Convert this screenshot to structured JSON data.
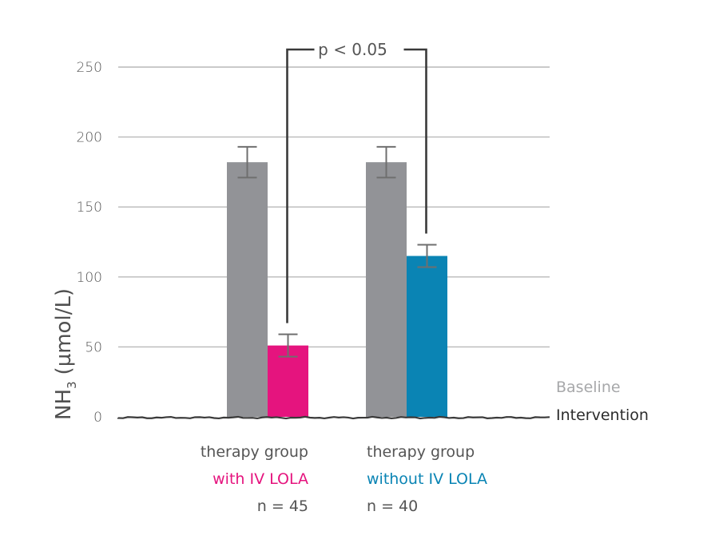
{
  "chart_data": {
    "type": "bar",
    "title": "",
    "xlabel": "",
    "ylabel": "NH",
    "ylabel_subscript": "3",
    "ylabel_units": "(µmol/L)",
    "ylim": [
      0,
      250
    ],
    "yticks": [
      0,
      50,
      100,
      150,
      200,
      250
    ],
    "ytick_labels": [
      "0",
      "50",
      "100",
      "150",
      "200",
      "250"
    ],
    "grid": true,
    "legend_position": "bottom-right",
    "categories": [
      {
        "line1": "therapy group",
        "line2": "with IV LOLA",
        "n_label": "n = 45",
        "color": "#e5147e"
      },
      {
        "line1": "therapy group",
        "line2": "without IV LOLA",
        "n_label": "n = 40",
        "color": "#0a84b4"
      }
    ],
    "series": [
      {
        "name": "Baseline",
        "color": "#929397",
        "values": [
          182,
          182
        ],
        "errors": [
          11,
          11
        ]
      },
      {
        "name": "Intervention",
        "colors": [
          "#e5147e",
          "#0a84b4"
        ],
        "values": [
          51,
          115
        ],
        "errors": [
          8,
          8
        ]
      }
    ],
    "annotations": [
      {
        "type": "significance-bracket",
        "label": "p < 0.05",
        "between": [
          "with IV LOLA Intervention",
          "without IV LOLA Intervention"
        ]
      }
    ]
  },
  "legend": {
    "baseline": {
      "label": "Baseline",
      "color": "#a7a8aa"
    },
    "intervention": {
      "label": "Intervention",
      "color": "#2b2b2b"
    }
  }
}
